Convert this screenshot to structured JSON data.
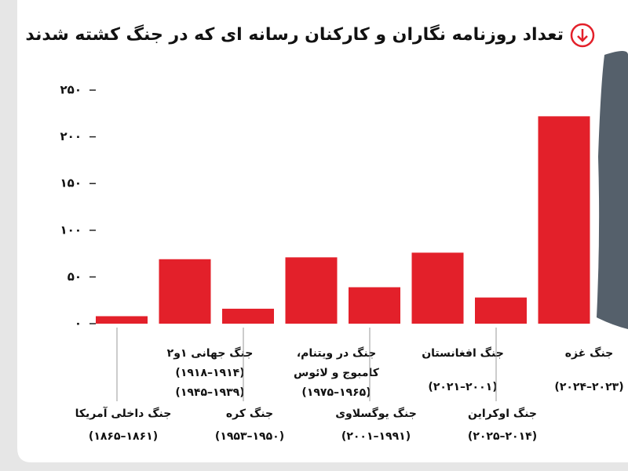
{
  "chart_data": {
    "type": "bar",
    "title": "تعداد روزنامه نگاران و کارکنان رسانه ای که در جنگ کشته شدند",
    "categories": [
      [
        "جنگ داخلی آمریکا",
        "(۱۸۶۱–۱۸۶۵)"
      ],
      [
        "جنگ جهانی ۱و۲",
        "(۱۹۱۴–۱۹۱۸)",
        "(۱۹۳۹–۱۹۴۵)"
      ],
      [
        "جنگ کره",
        "(۱۹۵۰–۱۹۵۳)"
      ],
      [
        "جنگ در ویتنام،",
        "کامبوج و لائوس",
        "(۱۹۶۵–۱۹۷۵)"
      ],
      [
        "جنگ یوگسلاوی",
        "(۱۹۹۱–۲۰۰۱)"
      ],
      [
        "جنگ افغانستان",
        "(۲۰۰۱–۲۰۲۱)"
      ],
      [
        "جنگ اوکراین",
        "(۲۰۱۴–۲۰۲۵)"
      ],
      [
        "جنگ غزه",
        "(۲۰۲۳–۲۰۲۴)"
      ]
    ],
    "values": [
      8,
      69,
      16,
      71,
      39,
      76,
      28,
      222
    ],
    "color": "#e3202a",
    "ylim": [
      0,
      250
    ],
    "yticks": [
      {
        "value": 0,
        "label": "۰"
      },
      {
        "value": 50,
        "label": "۵۰"
      },
      {
        "value": 100,
        "label": "۱۰۰"
      },
      {
        "value": 150,
        "label": "۱۵۰"
      },
      {
        "value": 200,
        "label": "۲۰۰"
      },
      {
        "value": 250,
        "label": "۲۵۰"
      }
    ]
  }
}
